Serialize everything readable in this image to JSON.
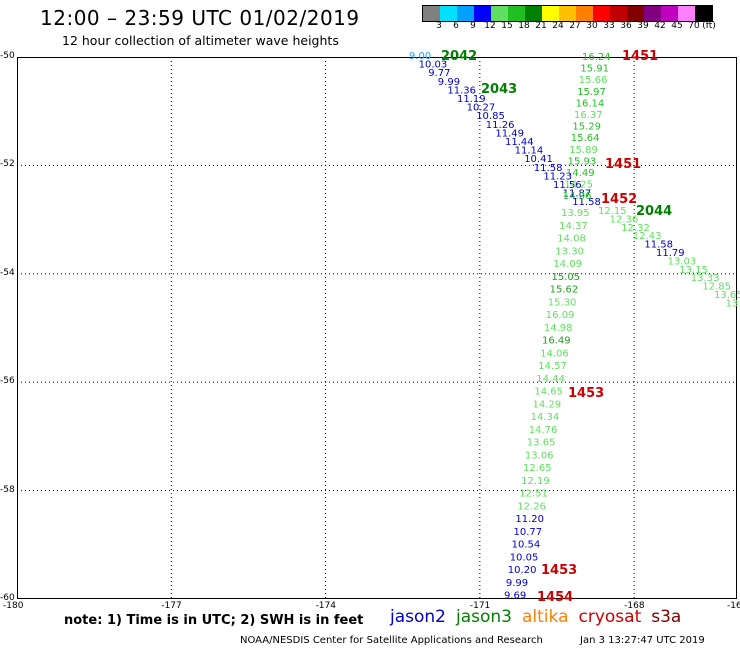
{
  "header": {
    "title": "12:00 – 23:59 UTC 01/02/2019",
    "subtitle": "12 hour collection of altimeter wave heights"
  },
  "colorbar": {
    "labels": [
      "3",
      "6",
      "9",
      "12",
      "15",
      "18",
      "21",
      "24",
      "27",
      "30",
      "33",
      "36",
      "39",
      "42",
      "45",
      "70",
      "(ft)"
    ],
    "colors": [
      "#808080",
      "#00e0ff",
      "#00a0ff",
      "#0000ff",
      "#60e060",
      "#20c020",
      "#008000",
      "#ffff00",
      "#ffc000",
      "#ff8000",
      "#ff0000",
      "#c00000",
      "#800000",
      "#800080",
      "#c000c0",
      "#ff80ff",
      "#000000"
    ]
  },
  "map": {
    "lon_range": [
      -180,
      -166
    ],
    "lat_range": [
      -60,
      -50
    ],
    "lon_ticks": [
      "-180",
      "-177",
      "-174",
      "-171",
      "-168",
      "-16"
    ],
    "lat_ticks": [
      "-50",
      "-52",
      "-54",
      "-56",
      "-58",
      "-60"
    ]
  },
  "tracks": {
    "track_a": {
      "color": "#0000cc",
      "values": [
        "9.00",
        "10.03",
        "9.77",
        "9.99",
        "11.36",
        "11.19",
        "10.27",
        "10.85",
        "11.26",
        "11.49",
        "11.44",
        "11.14",
        "10.41",
        "11.58",
        "11.23",
        "11.56",
        "11.87",
        "11.58"
      ],
      "labels": [
        {
          "text": "2042",
          "color": "#008000"
        },
        {
          "text": "2043",
          "color": "#008000"
        }
      ]
    },
    "track_b": {
      "color": "#20c020",
      "values": [
        "16.24",
        "15.91",
        "15.66",
        "15.97",
        "16.14",
        "16.37",
        "15.29",
        "15.64",
        "15.89",
        "15.93",
        "14.49",
        "14.25",
        "14.06"
      ],
      "labels": [
        {
          "text": "1451",
          "color": "#cc0000"
        },
        {
          "text": "1451",
          "color": "#cc0000"
        }
      ]
    },
    "track_c": {
      "values": [
        "12.15",
        "12.36",
        "12.32",
        "12.43",
        "11.58",
        "11.79",
        "13.03",
        "13.15",
        "13.33",
        "12.85",
        "13.65",
        "13."
      ],
      "labels": [
        {
          "text": "1452",
          "color": "#cc0000"
        },
        {
          "text": "2044",
          "color": "#008000"
        }
      ]
    },
    "track_d": {
      "values": [
        "13.95",
        "14.37",
        "14.08",
        "13.30",
        "14.09",
        "15.05",
        "15.62",
        "15.30",
        "16.09",
        "14.98",
        "16.49",
        "14.06",
        "14.57",
        "14.44",
        "14.65",
        "14.29",
        "14.34",
        "14.76",
        "13.65",
        "13.06",
        "12.65",
        "12.19",
        "12.51",
        "12.26",
        "11.20",
        "10.77",
        "10.54",
        "10.05",
        "10.20",
        "9.99",
        "9.69"
      ],
      "labels": [
        {
          "text": "1453",
          "color": "#cc0000"
        },
        {
          "text": "1453",
          "color": "#cc0000"
        },
        {
          "text": "1454",
          "color": "#cc0000"
        }
      ]
    }
  },
  "footer": {
    "note": "note:  1) Time is in UTC;  2) SWH is in feet",
    "legend": [
      {
        "text": "jason2",
        "color": "#0000cc"
      },
      {
        "text": "jason3",
        "color": "#008000"
      },
      {
        "text": "altika",
        "color": "#ff8000"
      },
      {
        "text": "cryosat",
        "color": "#cc0000"
      },
      {
        "text": "s3a",
        "color": "#800000"
      }
    ],
    "credit": "NOAA/NESDIS Center for Satellite Applications and Research",
    "timestamp": "Jan  3 13:27:47 UTC 2019"
  }
}
